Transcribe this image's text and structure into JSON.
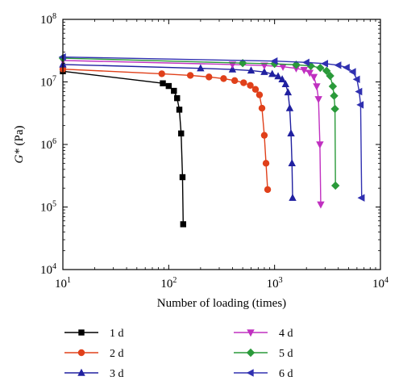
{
  "chart_data": {
    "type": "line",
    "xlabel": "Number of loading (times)",
    "ylabel_italic": "G*",
    "ylabel_rest": " (Pa)",
    "xscale": "log",
    "yscale": "log",
    "xlim": [
      10,
      10000
    ],
    "ylim": [
      10000,
      100000000
    ],
    "xticks": [
      {
        "base": "10",
        "exp": "1",
        "value": 10
      },
      {
        "base": "10",
        "exp": "2",
        "value": 100
      },
      {
        "base": "10",
        "exp": "3",
        "value": 1000
      },
      {
        "base": "10",
        "exp": "4",
        "value": 10000
      }
    ],
    "yticks": [
      {
        "base": "10",
        "exp": "4",
        "value": 10000
      },
      {
        "base": "10",
        "exp": "5",
        "value": 100000
      },
      {
        "base": "10",
        "exp": "6",
        "value": 1000000
      },
      {
        "base": "10",
        "exp": "7",
        "value": 10000000
      },
      {
        "base": "10",
        "exp": "8",
        "value": 100000000
      }
    ],
    "grid": false,
    "legend_position": "bottom",
    "series": [
      {
        "name": "1 d",
        "color": "#000000",
        "marker": "square",
        "x": [
          10,
          88,
          100,
          112,
          120,
          126,
          131,
          135,
          137
        ],
        "y": [
          14800000,
          9500000,
          8600000,
          7200000,
          5500000,
          3600000,
          1500000,
          300000,
          53000
        ]
      },
      {
        "name": "2 d",
        "color": "#e0401a",
        "marker": "circle",
        "x": [
          10,
          86,
          160,
          240,
          330,
          420,
          510,
          590,
          660,
          720,
          760,
          800,
          830,
          860
        ],
        "y": [
          16000000,
          13500000,
          12700000,
          12000000,
          11300000,
          10500000,
          9700000,
          8800000,
          7600000,
          6200000,
          3800000,
          1400000,
          500000,
          190000
        ]
      },
      {
        "name": "3 d",
        "color": "#2020a0",
        "marker": "triangle-up",
        "x": [
          10,
          200,
          400,
          600,
          800,
          950,
          1080,
          1180,
          1270,
          1340,
          1390,
          1430,
          1460,
          1480
        ],
        "y": [
          19000000,
          16500000,
          15800000,
          15200000,
          14400000,
          13400000,
          12300000,
          11000000,
          9200000,
          6800000,
          3800000,
          1500000,
          500000,
          140000
        ]
      },
      {
        "name": "4 d",
        "color": "#c030c0",
        "marker": "triangle-down",
        "x": [
          10,
          400,
          800,
          1200,
          1600,
          1900,
          2150,
          2350,
          2500,
          2600,
          2680,
          2730
        ],
        "y": [
          22000000,
          19000000,
          18300000,
          17500000,
          16500000,
          15500000,
          14000000,
          12000000,
          8500000,
          5300000,
          1000000,
          110000
        ]
      },
      {
        "name": "5 d",
        "color": "#2a9a3a",
        "marker": "diamond",
        "x": [
          10,
          500,
          1000,
          1600,
          2200,
          2700,
          3100,
          3350,
          3550,
          3650,
          3720,
          3760
        ],
        "y": [
          24000000,
          20000000,
          19500000,
          18800000,
          18000000,
          16800000,
          15000000,
          12500000,
          8500000,
          6000000,
          3700000,
          220000
        ]
      },
      {
        "name": "6 d",
        "color": "#3030b0",
        "marker": "triangle-left",
        "x": [
          10,
          1000,
          2000,
          3000,
          4000,
          4800,
          5500,
          6000,
          6300,
          6500,
          6650
        ],
        "y": [
          25000000,
          21500000,
          20500000,
          19600000,
          18500000,
          17000000,
          14500000,
          11000000,
          7000000,
          4300000,
          140000
        ]
      }
    ]
  }
}
